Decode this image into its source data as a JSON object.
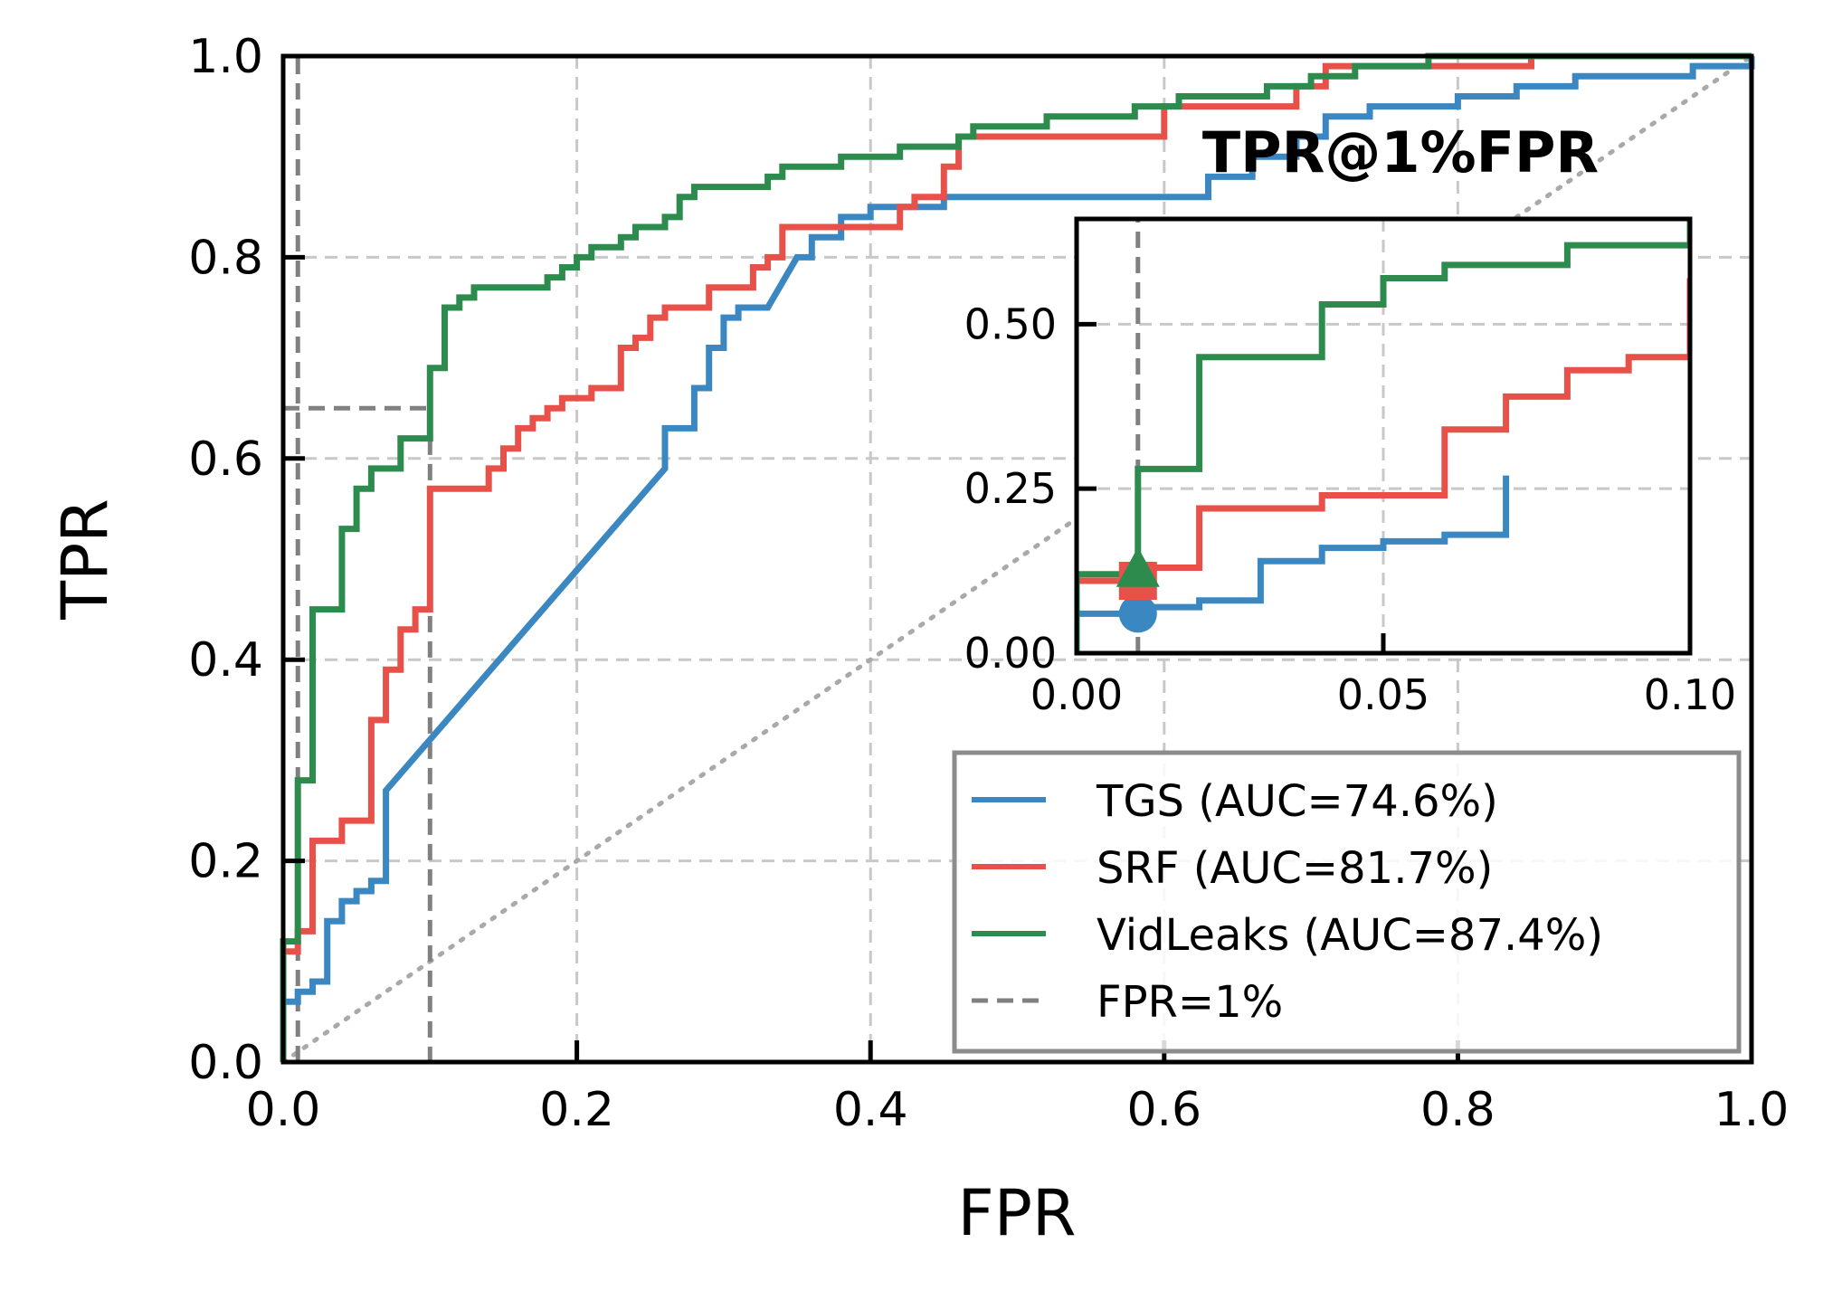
{
  "chart_data": {
    "type": "line",
    "xlabel": "FPR",
    "ylabel": "TPR",
    "xlim": [
      0,
      1
    ],
    "ylim": [
      0,
      1
    ],
    "xticks": [
      "0.0",
      "0.2",
      "0.4",
      "0.6",
      "0.8",
      "1.0"
    ],
    "yticks": [
      "0.0",
      "0.2",
      "0.4",
      "0.6",
      "0.8",
      "1.0"
    ],
    "grid": true,
    "legend_position": "lower-right",
    "colors": {
      "tgs": "#3a87c1",
      "srf": "#e8514a",
      "vidleaks": "#2e8b4e",
      "fpr_line": "#808080",
      "diagonal": "#a9a9a9"
    },
    "series": [
      {
        "key": "tgs",
        "name": "TGS (AUC=74.6%)",
        "points": [
          [
            0,
            0
          ],
          [
            0,
            0.06
          ],
          [
            0.01,
            0.06
          ],
          [
            0.01,
            0.07
          ],
          [
            0.02,
            0.07
          ],
          [
            0.02,
            0.08
          ],
          [
            0.03,
            0.08
          ],
          [
            0.03,
            0.14
          ],
          [
            0.04,
            0.14
          ],
          [
            0.04,
            0.16
          ],
          [
            0.05,
            0.16
          ],
          [
            0.05,
            0.17
          ],
          [
            0.06,
            0.17
          ],
          [
            0.06,
            0.18
          ],
          [
            0.07,
            0.18
          ],
          [
            0.07,
            0.27
          ],
          [
            0.26,
            0.59
          ],
          [
            0.26,
            0.63
          ],
          [
            0.28,
            0.63
          ],
          [
            0.28,
            0.67
          ],
          [
            0.29,
            0.67
          ],
          [
            0.29,
            0.71
          ],
          [
            0.3,
            0.71
          ],
          [
            0.3,
            0.74
          ],
          [
            0.31,
            0.74
          ],
          [
            0.31,
            0.75
          ],
          [
            0.33,
            0.75
          ],
          [
            0.35,
            0.8
          ],
          [
            0.36,
            0.8
          ],
          [
            0.36,
            0.82
          ],
          [
            0.38,
            0.82
          ],
          [
            0.38,
            0.84
          ],
          [
            0.4,
            0.84
          ],
          [
            0.4,
            0.85
          ],
          [
            0.45,
            0.85
          ],
          [
            0.45,
            0.86
          ],
          [
            0.63,
            0.86
          ],
          [
            0.63,
            0.88
          ],
          [
            0.66,
            0.88
          ],
          [
            0.66,
            0.9
          ],
          [
            0.69,
            0.9
          ],
          [
            0.69,
            0.92
          ],
          [
            0.71,
            0.92
          ],
          [
            0.71,
            0.94
          ],
          [
            0.74,
            0.94
          ],
          [
            0.74,
            0.95
          ],
          [
            0.8,
            0.95
          ],
          [
            0.8,
            0.96
          ],
          [
            0.84,
            0.96
          ],
          [
            0.84,
            0.97
          ],
          [
            0.88,
            0.97
          ],
          [
            0.88,
            0.98
          ],
          [
            0.96,
            0.98
          ],
          [
            0.96,
            0.99
          ],
          [
            1,
            0.99
          ],
          [
            1,
            1
          ]
        ]
      },
      {
        "key": "srf",
        "name": "SRF (AUC=81.7%)",
        "points": [
          [
            0,
            0
          ],
          [
            0,
            0.11
          ],
          [
            0.01,
            0.11
          ],
          [
            0.01,
            0.13
          ],
          [
            0.02,
            0.13
          ],
          [
            0.02,
            0.22
          ],
          [
            0.04,
            0.22
          ],
          [
            0.04,
            0.24
          ],
          [
            0.06,
            0.24
          ],
          [
            0.06,
            0.34
          ],
          [
            0.07,
            0.34
          ],
          [
            0.07,
            0.39
          ],
          [
            0.08,
            0.39
          ],
          [
            0.08,
            0.43
          ],
          [
            0.09,
            0.43
          ],
          [
            0.09,
            0.45
          ],
          [
            0.1,
            0.45
          ],
          [
            0.1,
            0.57
          ],
          [
            0.14,
            0.57
          ],
          [
            0.14,
            0.59
          ],
          [
            0.15,
            0.59
          ],
          [
            0.15,
            0.61
          ],
          [
            0.16,
            0.61
          ],
          [
            0.16,
            0.63
          ],
          [
            0.17,
            0.63
          ],
          [
            0.17,
            0.64
          ],
          [
            0.18,
            0.64
          ],
          [
            0.18,
            0.65
          ],
          [
            0.19,
            0.65
          ],
          [
            0.19,
            0.66
          ],
          [
            0.21,
            0.66
          ],
          [
            0.21,
            0.67
          ],
          [
            0.23,
            0.67
          ],
          [
            0.23,
            0.71
          ],
          [
            0.24,
            0.71
          ],
          [
            0.24,
            0.72
          ],
          [
            0.25,
            0.72
          ],
          [
            0.25,
            0.74
          ],
          [
            0.26,
            0.74
          ],
          [
            0.26,
            0.75
          ],
          [
            0.29,
            0.75
          ],
          [
            0.29,
            0.77
          ],
          [
            0.32,
            0.77
          ],
          [
            0.32,
            0.79
          ],
          [
            0.33,
            0.79
          ],
          [
            0.33,
            0.8
          ],
          [
            0.34,
            0.8
          ],
          [
            0.34,
            0.83
          ],
          [
            0.42,
            0.83
          ],
          [
            0.42,
            0.85
          ],
          [
            0.43,
            0.85
          ],
          [
            0.43,
            0.86
          ],
          [
            0.45,
            0.86
          ],
          [
            0.45,
            0.89
          ],
          [
            0.46,
            0.89
          ],
          [
            0.46,
            0.92
          ],
          [
            0.6,
            0.92
          ],
          [
            0.6,
            0.95
          ],
          [
            0.69,
            0.95
          ],
          [
            0.69,
            0.97
          ],
          [
            0.71,
            0.97
          ],
          [
            0.71,
            0.99
          ],
          [
            0.76,
            0.99
          ],
          [
            0.76,
            0.99
          ],
          [
            0.85,
            0.99
          ],
          [
            0.85,
            1
          ],
          [
            1,
            1
          ]
        ]
      },
      {
        "key": "vidleaks",
        "name": "VidLeaks (AUC=87.4%)",
        "points": [
          [
            0,
            0
          ],
          [
            0,
            0.12
          ],
          [
            0.01,
            0.12
          ],
          [
            0.01,
            0.28
          ],
          [
            0.02,
            0.28
          ],
          [
            0.02,
            0.45
          ],
          [
            0.04,
            0.45
          ],
          [
            0.04,
            0.53
          ],
          [
            0.05,
            0.53
          ],
          [
            0.05,
            0.57
          ],
          [
            0.06,
            0.57
          ],
          [
            0.06,
            0.59
          ],
          [
            0.08,
            0.59
          ],
          [
            0.08,
            0.62
          ],
          [
            0.1,
            0.62
          ],
          [
            0.1,
            0.69
          ],
          [
            0.11,
            0.69
          ],
          [
            0.11,
            0.75
          ],
          [
            0.12,
            0.75
          ],
          [
            0.12,
            0.76
          ],
          [
            0.13,
            0.76
          ],
          [
            0.13,
            0.77
          ],
          [
            0.18,
            0.77
          ],
          [
            0.18,
            0.78
          ],
          [
            0.19,
            0.78
          ],
          [
            0.19,
            0.79
          ],
          [
            0.2,
            0.79
          ],
          [
            0.2,
            0.8
          ],
          [
            0.21,
            0.8
          ],
          [
            0.21,
            0.81
          ],
          [
            0.23,
            0.81
          ],
          [
            0.23,
            0.82
          ],
          [
            0.24,
            0.82
          ],
          [
            0.24,
            0.83
          ],
          [
            0.26,
            0.83
          ],
          [
            0.26,
            0.84
          ],
          [
            0.27,
            0.84
          ],
          [
            0.27,
            0.86
          ],
          [
            0.28,
            0.86
          ],
          [
            0.28,
            0.87
          ],
          [
            0.33,
            0.87
          ],
          [
            0.33,
            0.88
          ],
          [
            0.34,
            0.88
          ],
          [
            0.34,
            0.89
          ],
          [
            0.38,
            0.89
          ],
          [
            0.38,
            0.9
          ],
          [
            0.42,
            0.9
          ],
          [
            0.42,
            0.91
          ],
          [
            0.46,
            0.91
          ],
          [
            0.46,
            0.92
          ],
          [
            0.47,
            0.92
          ],
          [
            0.47,
            0.93
          ],
          [
            0.52,
            0.93
          ],
          [
            0.52,
            0.94
          ],
          [
            0.58,
            0.94
          ],
          [
            0.58,
            0.95
          ],
          [
            0.61,
            0.95
          ],
          [
            0.61,
            0.96
          ],
          [
            0.67,
            0.96
          ],
          [
            0.67,
            0.97
          ],
          [
            0.7,
            0.97
          ],
          [
            0.7,
            0.98
          ],
          [
            0.73,
            0.98
          ],
          [
            0.73,
            0.99
          ],
          [
            0.78,
            0.99
          ],
          [
            0.78,
            1
          ],
          [
            1,
            1
          ]
        ]
      }
    ],
    "reference_line": {
      "name": "FPR=1%",
      "x": 0.01
    },
    "chance_line": [
      [
        0,
        0
      ],
      [
        1,
        1
      ]
    ],
    "zoom_box": {
      "x": [
        0,
        0.1
      ],
      "y": [
        0,
        0.65
      ]
    },
    "inset": {
      "title": "TPR@1%FPR",
      "xlim": [
        0,
        0.1
      ],
      "ylim": [
        0,
        0.66
      ],
      "xticks": [
        "0.00",
        "0.05",
        "0.10"
      ],
      "yticks": [
        "0.00",
        "0.25",
        "0.50"
      ],
      "markers": [
        {
          "key": "tgs",
          "shape": "circle",
          "x": 0.01,
          "y": 0.06
        },
        {
          "key": "srf",
          "shape": "square",
          "x": 0.01,
          "y": 0.11
        },
        {
          "key": "vidleaks",
          "shape": "triangle",
          "x": 0.01,
          "y": 0.12
        }
      ]
    }
  }
}
